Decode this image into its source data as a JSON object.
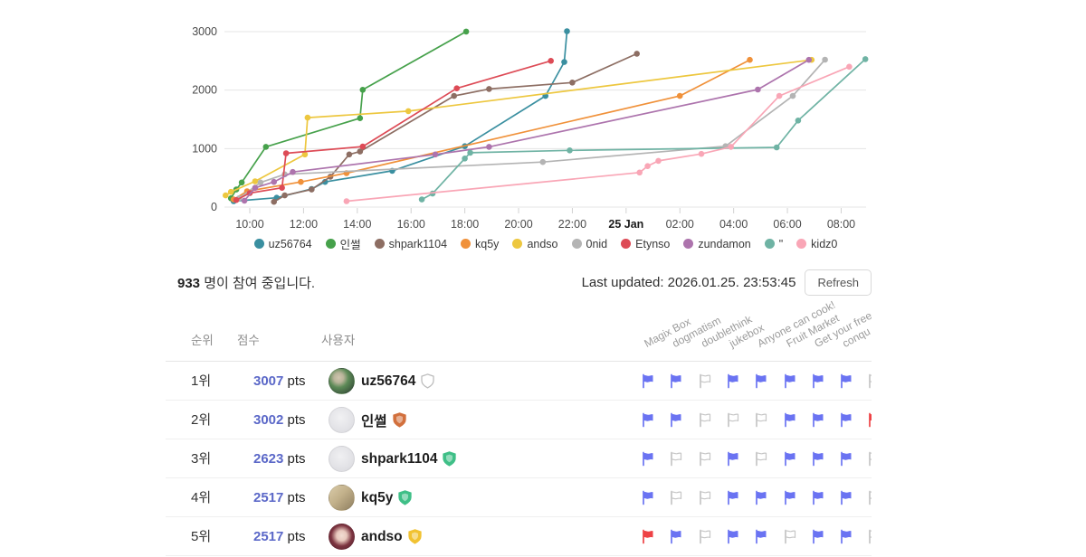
{
  "chart_data": {
    "type": "line",
    "title": "",
    "xlabel": "",
    "ylabel": "",
    "grid": "horizontal",
    "legend_position": "bottom",
    "y_ticks": [
      0,
      1000,
      2000,
      3000
    ],
    "y_range": [
      0,
      3100
    ],
    "x_ticks": [
      {
        "label": "10:00",
        "hour": 10,
        "bold": false
      },
      {
        "label": "12:00",
        "hour": 12,
        "bold": false
      },
      {
        "label": "14:00",
        "hour": 14,
        "bold": false
      },
      {
        "label": "16:00",
        "hour": 16,
        "bold": false
      },
      {
        "label": "18:00",
        "hour": 18,
        "bold": false
      },
      {
        "label": "20:00",
        "hour": 20,
        "bold": false
      },
      {
        "label": "22:00",
        "hour": 22,
        "bold": false
      },
      {
        "label": "25 Jan",
        "hour": 24,
        "bold": true
      },
      {
        "label": "02:00",
        "hour": 26,
        "bold": false
      },
      {
        "label": "04:00",
        "hour": 28,
        "bold": false
      },
      {
        "label": "06:00",
        "hour": 30,
        "bold": false
      },
      {
        "label": "08:00",
        "hour": 32,
        "bold": false
      }
    ],
    "series": [
      {
        "name": "uz56764",
        "color": "#3a8fa0",
        "points": [
          [
            9.4,
            100
          ],
          [
            11.0,
            160
          ],
          [
            12.3,
            310
          ],
          [
            12.8,
            430
          ],
          [
            15.3,
            620
          ],
          [
            18.0,
            1040
          ],
          [
            21.0,
            1900
          ],
          [
            21.7,
            2480
          ],
          [
            21.8,
            3007
          ]
        ]
      },
      {
        "name": "인썰",
        "color": "#46a14b",
        "points": [
          [
            9.3,
            150
          ],
          [
            9.5,
            300
          ],
          [
            9.7,
            420
          ],
          [
            10.6,
            1030
          ],
          [
            14.1,
            1520
          ],
          [
            14.2,
            2005
          ],
          [
            18.05,
            3002
          ]
        ]
      },
      {
        "name": "shpark1104",
        "color": "#8d6e63",
        "points": [
          [
            10.9,
            90
          ],
          [
            11.3,
            200
          ],
          [
            12.3,
            300
          ],
          [
            13.0,
            520
          ],
          [
            13.7,
            900
          ],
          [
            14.1,
            950
          ],
          [
            17.6,
            1900
          ],
          [
            18.9,
            2020
          ],
          [
            22.0,
            2130
          ],
          [
            24.4,
            2623
          ]
        ]
      },
      {
        "name": "kq5y",
        "color": "#f0913a",
        "points": [
          [
            9.4,
            130
          ],
          [
            9.9,
            270
          ],
          [
            11.9,
            430
          ],
          [
            13.6,
            580
          ],
          [
            26.0,
            1900
          ],
          [
            28.6,
            2517
          ]
        ]
      },
      {
        "name": "andso",
        "color": "#edc73f",
        "points": [
          [
            9.1,
            200
          ],
          [
            9.3,
            260
          ],
          [
            10.2,
            440
          ],
          [
            12.05,
            900
          ],
          [
            12.15,
            1530
          ],
          [
            15.9,
            1640
          ],
          [
            30.9,
            2517
          ]
        ]
      },
      {
        "name": "0nid",
        "color": "#b4b4b4",
        "points": [
          [
            9.6,
            150
          ],
          [
            10.4,
            420
          ],
          [
            11.3,
            560
          ],
          [
            20.9,
            770
          ],
          [
            27.7,
            1040
          ],
          [
            30.2,
            1900
          ],
          [
            31.4,
            2520
          ]
        ]
      },
      {
        "name": "Etynso",
        "color": "#dd4b56",
        "points": [
          [
            9.5,
            120
          ],
          [
            10.0,
            240
          ],
          [
            11.2,
            330
          ],
          [
            11.35,
            920
          ],
          [
            14.2,
            1035
          ],
          [
            17.7,
            2030
          ],
          [
            21.2,
            2500
          ]
        ]
      },
      {
        "name": "zundamon",
        "color": "#ad74ad",
        "points": [
          [
            9.8,
            110
          ],
          [
            10.2,
            330
          ],
          [
            10.9,
            430
          ],
          [
            11.6,
            600
          ],
          [
            16.9,
            900
          ],
          [
            18.9,
            1030
          ],
          [
            28.9,
            2010
          ],
          [
            30.8,
            2517
          ]
        ]
      },
      {
        "name": "\"",
        "color": "#6fb3a4",
        "points": [
          [
            16.4,
            130
          ],
          [
            16.8,
            230
          ],
          [
            18.0,
            830
          ],
          [
            18.2,
            930
          ],
          [
            21.9,
            970
          ],
          [
            29.6,
            1020
          ],
          [
            30.4,
            1480
          ],
          [
            32.9,
            2530
          ]
        ]
      },
      {
        "name": "kidz0",
        "color": "#f9a6b6",
        "points": [
          [
            13.6,
            100
          ],
          [
            24.5,
            590
          ],
          [
            24.8,
            700
          ],
          [
            25.2,
            790
          ],
          [
            26.8,
            910
          ],
          [
            27.9,
            1030
          ],
          [
            29.7,
            1900
          ],
          [
            32.3,
            2400
          ]
        ]
      }
    ]
  },
  "status": {
    "participants_count": "933",
    "participants_text": " 명이 참여 중입니다.",
    "last_updated": "Last updated: 2026.01.25. 23:53:45",
    "refresh_label": "Refresh"
  },
  "table": {
    "headers": {
      "rank": "순위",
      "score": "점수",
      "user": "사용자"
    },
    "challenges": [
      "Magix Box",
      "dogmatism",
      "doublethink",
      "jukebox",
      "Anyone can cook!",
      "Fruit Market",
      "Get your free",
      "conqu"
    ],
    "rows": [
      {
        "rank": "1위",
        "score": "3007",
        "pts": "pts",
        "user": "uz56764",
        "avatar": "green creature",
        "badge": {
          "shape": "shield",
          "color": "#ffffff",
          "stroke": "#bdbdbd",
          "filled": false
        },
        "flags": [
          "solved",
          "solved",
          "unsolved",
          "solved",
          "solved",
          "solved",
          "solved",
          "solved",
          "unsolved"
        ]
      },
      {
        "rank": "2위",
        "score": "3002",
        "pts": "pts",
        "user": "인썰",
        "avatar": "gray default",
        "badge": {
          "shape": "shield",
          "color": "#d2703d",
          "stroke": "#d2703d",
          "filled": true
        },
        "flags": [
          "solved",
          "solved",
          "unsolved",
          "unsolved",
          "unsolved",
          "solved",
          "solved",
          "solved",
          "first"
        ]
      },
      {
        "rank": "3위",
        "score": "2623",
        "pts": "pts",
        "user": "shpark1104",
        "avatar": "gray default",
        "badge": {
          "shape": "shield",
          "color": "#3fbf87",
          "stroke": "#3fbf87",
          "filled": true
        },
        "flags": [
          "solved",
          "unsolved",
          "unsolved",
          "solved",
          "unsolved",
          "solved",
          "solved",
          "solved",
          "unsolved"
        ]
      },
      {
        "rank": "4위",
        "score": "2517",
        "pts": "pts",
        "user": "kq5y",
        "avatar": "tan artwork",
        "badge": {
          "shape": "shield",
          "color": "#3fbf87",
          "stroke": "#3fbf87",
          "filled": true
        },
        "flags": [
          "solved",
          "unsolved",
          "unsolved",
          "solved",
          "solved",
          "solved",
          "solved",
          "solved",
          "unsolved"
        ]
      },
      {
        "rank": "5위",
        "score": "2517",
        "pts": "pts",
        "user": "andso",
        "avatar": "anime character",
        "badge": {
          "shape": "shield",
          "color": "#f1c232",
          "stroke": "#f1c232",
          "filled": true
        },
        "flags": [
          "first",
          "solved",
          "unsolved",
          "solved",
          "solved",
          "unsolved",
          "solved",
          "solved",
          "unsolved"
        ]
      }
    ]
  },
  "colors": {
    "score_number": "#5b68c8",
    "flag_solved": "#6a73f2",
    "flag_first": "#ee4245",
    "flag_unsolved": "#c6c6c6",
    "grid_line": "#e4e4e4",
    "axis_label": "#4a4a4a",
    "axis_label_bold": "#1b1b1b"
  }
}
